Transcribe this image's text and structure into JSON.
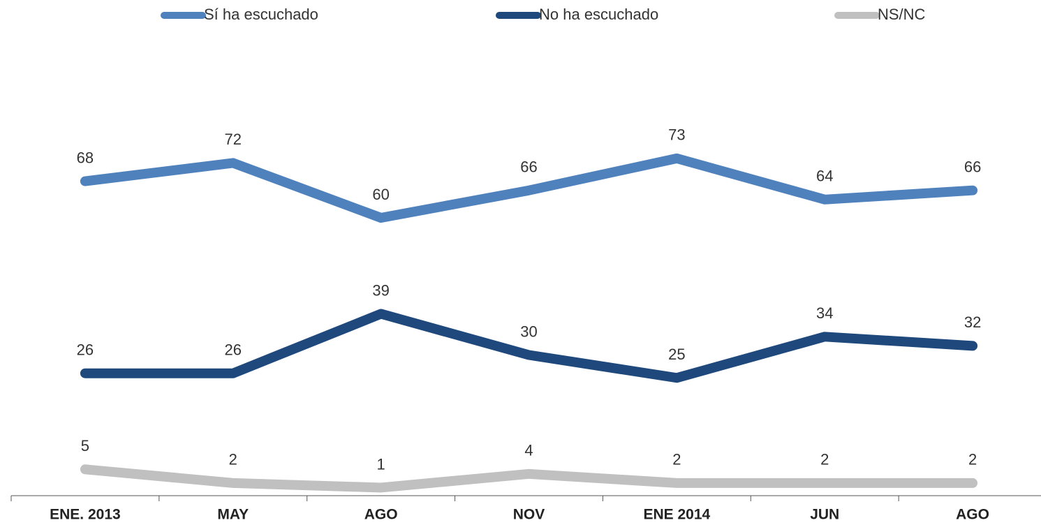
{
  "chart_data": {
    "type": "line",
    "categories": [
      "ENE. 2013",
      "MAY",
      "AGO",
      "NOV",
      "ENE 2014",
      "JUN",
      "AGO"
    ],
    "series": [
      {
        "name": "Sí ha escuchado",
        "color": "#4f81bd",
        "values": [
          68,
          72,
          60,
          66,
          73,
          64,
          66
        ]
      },
      {
        "name": "No ha escuchado",
        "color": "#1f497d",
        "values": [
          26,
          26,
          39,
          30,
          25,
          34,
          32
        ]
      },
      {
        "name": "NS/NC",
        "color": "#c0c0c0",
        "values": [
          5,
          2,
          1,
          4,
          2,
          2,
          2
        ]
      }
    ],
    "ylim": [
      0,
      100
    ],
    "legend": "top"
  }
}
